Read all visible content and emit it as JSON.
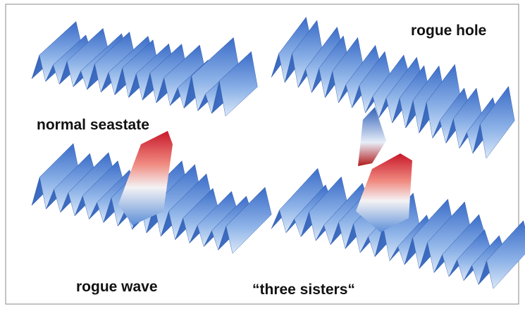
{
  "labels": {
    "top_left": "normal seastate",
    "top_right": "rogue hole",
    "bottom_left": "rogue wave",
    "bottom_right": "“three sisters“"
  }
}
